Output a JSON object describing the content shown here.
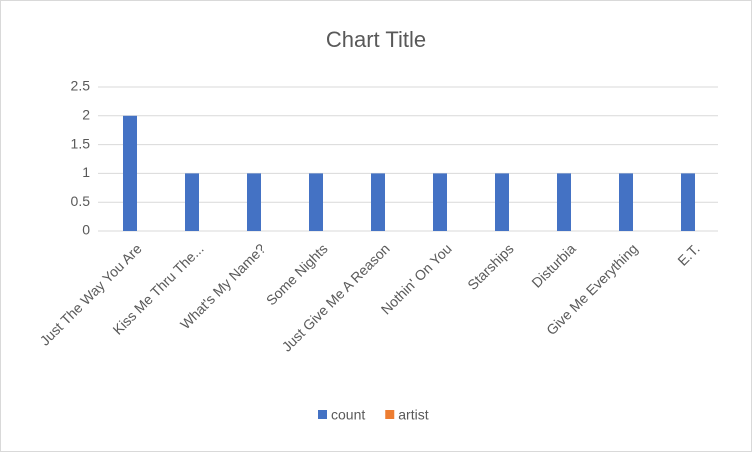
{
  "chart_data": {
    "type": "bar",
    "title": "Chart Title",
    "categories": [
      "Just The Way You Are",
      "Kiss Me Thru The...",
      "What's My Name?",
      "Some Nights",
      "Just Give Me A Reason",
      "Nothin' On You",
      "Starships",
      "Disturbia",
      "Give Me Everything",
      "E.T."
    ],
    "series": [
      {
        "name": "count",
        "color": "#4472c4",
        "values": [
          2,
          1,
          1,
          1,
          1,
          1,
          1,
          1,
          1,
          1
        ]
      },
      {
        "name": "artist",
        "color": "#ed7d31",
        "values": [
          null,
          null,
          null,
          null,
          null,
          null,
          null,
          null,
          null,
          null
        ]
      }
    ],
    "ylim": [
      0,
      2.5
    ],
    "yticks": [
      0,
      0.5,
      1,
      1.5,
      2,
      2.5
    ],
    "grid": true,
    "legend": "bottom"
  }
}
